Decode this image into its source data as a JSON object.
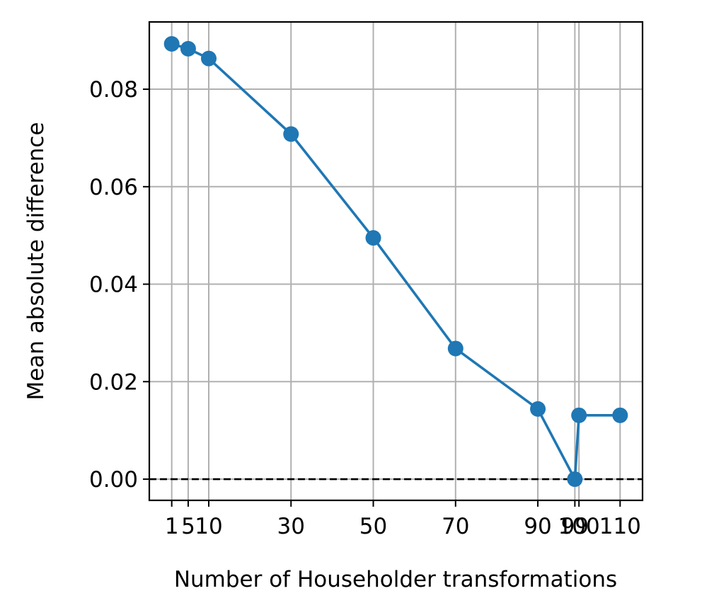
{
  "chart_data": {
    "type": "line",
    "title": "",
    "xlabel": "Number of Householder transformations",
    "ylabel": "Mean absolute difference",
    "x": [
      1,
      5,
      10,
      30,
      50,
      70,
      90,
      99,
      100,
      110
    ],
    "series": [
      {
        "values": [
          0.0893,
          0.0883,
          0.0863,
          0.0708,
          0.0495,
          0.0268,
          0.0144,
          0.0,
          0.0131,
          0.0131
        ]
      }
    ],
    "xticks": [
      1,
      5,
      10,
      30,
      50,
      70,
      90,
      99,
      100,
      110
    ],
    "xtick_labels": [
      "1",
      "5",
      "10",
      "30",
      "50",
      "70",
      "90",
      "99",
      "100",
      "110"
    ],
    "yticks": [
      0.0,
      0.02,
      0.04,
      0.06,
      0.08
    ],
    "ytick_labels": [
      "0.00",
      "0.02",
      "0.04",
      "0.06",
      "0.08"
    ],
    "xlim": [
      -4.45,
      115.45
    ],
    "ylim": [
      -0.00435,
      0.0938
    ],
    "grid": true,
    "reference_line": {
      "y": 0.0,
      "style": "dashed",
      "color": "#000000"
    },
    "colors": {
      "series": "#1f77b4",
      "grid": "#b0b0b0",
      "axes": "#000000"
    }
  }
}
